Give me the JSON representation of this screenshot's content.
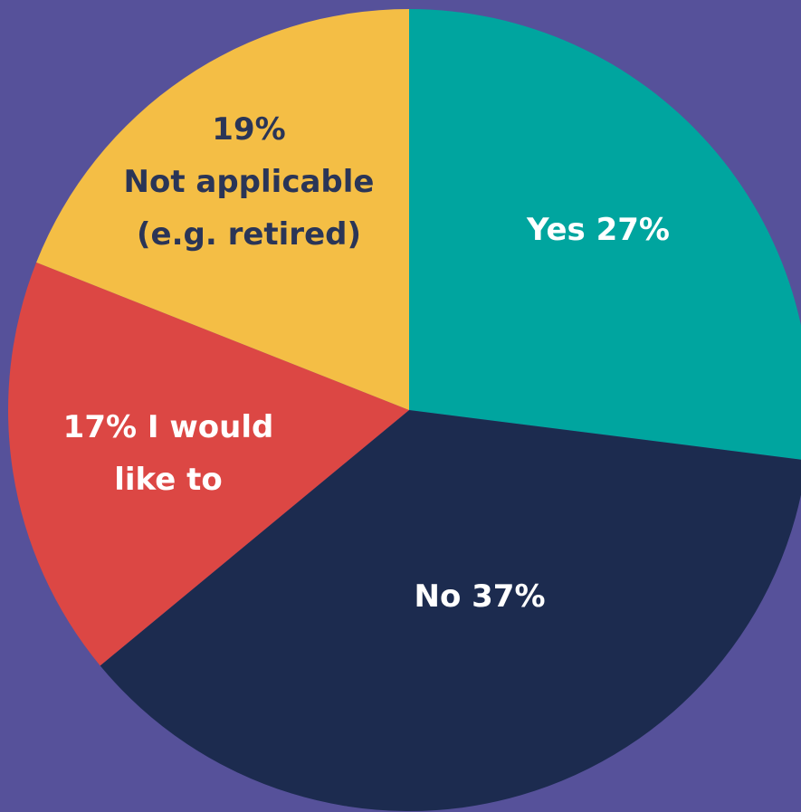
{
  "chart_data": {
    "type": "pie",
    "slices": [
      {
        "name": "Yes",
        "value": 27,
        "color": "#00a59f",
        "label_lines": [
          "Yes 27%"
        ],
        "label_color": "#ffffff"
      },
      {
        "name": "No",
        "value": 37,
        "color": "#1c2b4f",
        "label_lines": [
          "No 37%"
        ],
        "label_color": "#ffffff"
      },
      {
        "name": "I would like to",
        "value": 17,
        "color": "#dc4744",
        "label_lines": [
          "17% I would",
          "like to"
        ],
        "label_color": "#ffffff"
      },
      {
        "name": "Not applicable (e.g. retired)",
        "value": 19,
        "color": "#f4be45",
        "label_lines": [
          "19%",
          "Not applicable",
          "(e.g. retired)"
        ],
        "label_color": "#2a3557"
      }
    ],
    "start": "top",
    "direction": "clockwise",
    "background_color": "#56519a"
  }
}
